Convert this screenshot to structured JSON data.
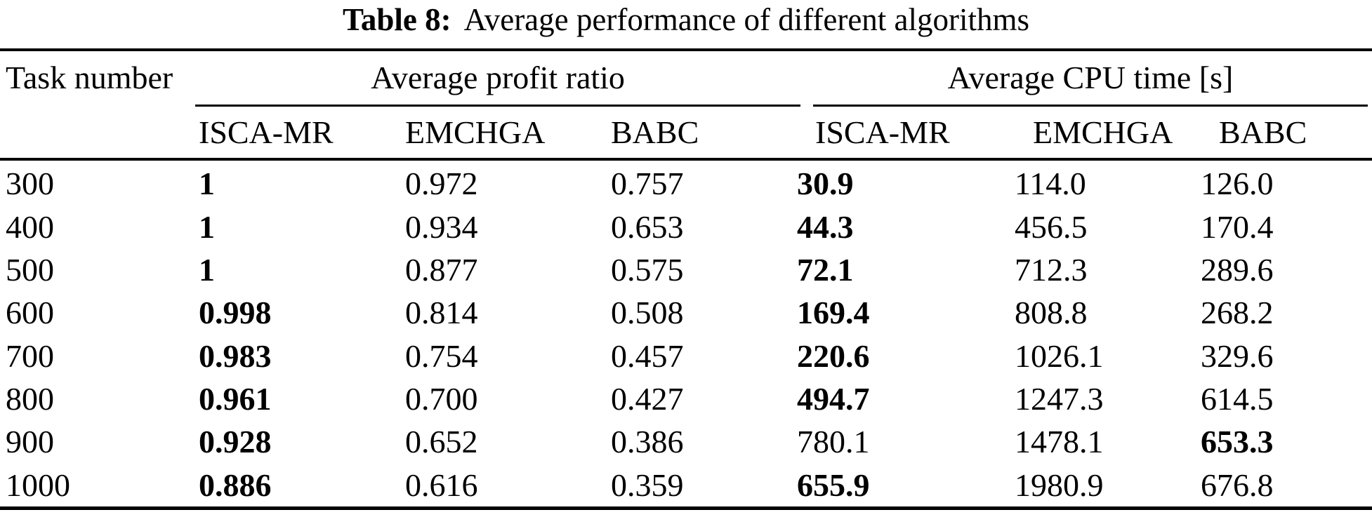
{
  "caption": {
    "label": "Table 8:",
    "text": "Average performance of different algorithms"
  },
  "headers": {
    "task": "Task number",
    "profit_group": "Average profit ratio",
    "cpu_group": "Average CPU time [s]",
    "algorithms": [
      "ISCA-MR",
      "EMCHGA",
      "BABC"
    ]
  },
  "rows": [
    {
      "task": "300",
      "profit": [
        {
          "v": "1",
          "bold": true
        },
        {
          "v": "0.972",
          "bold": false
        },
        {
          "v": "0.757",
          "bold": false
        }
      ],
      "cpu": [
        {
          "v": "30.9",
          "bold": true
        },
        {
          "v": "114.0",
          "bold": false
        },
        {
          "v": "126.0",
          "bold": false
        }
      ]
    },
    {
      "task": "400",
      "profit": [
        {
          "v": "1",
          "bold": true
        },
        {
          "v": "0.934",
          "bold": false
        },
        {
          "v": "0.653",
          "bold": false
        }
      ],
      "cpu": [
        {
          "v": "44.3",
          "bold": true
        },
        {
          "v": "456.5",
          "bold": false
        },
        {
          "v": "170.4",
          "bold": false
        }
      ]
    },
    {
      "task": "500",
      "profit": [
        {
          "v": "1",
          "bold": true
        },
        {
          "v": "0.877",
          "bold": false
        },
        {
          "v": "0.575",
          "bold": false
        }
      ],
      "cpu": [
        {
          "v": "72.1",
          "bold": true
        },
        {
          "v": "712.3",
          "bold": false
        },
        {
          "v": "289.6",
          "bold": false
        }
      ]
    },
    {
      "task": "600",
      "profit": [
        {
          "v": "0.998",
          "bold": true
        },
        {
          "v": "0.814",
          "bold": false
        },
        {
          "v": "0.508",
          "bold": false
        }
      ],
      "cpu": [
        {
          "v": "169.4",
          "bold": true
        },
        {
          "v": "808.8",
          "bold": false
        },
        {
          "v": "268.2",
          "bold": false
        }
      ]
    },
    {
      "task": "700",
      "profit": [
        {
          "v": "0.983",
          "bold": true
        },
        {
          "v": "0.754",
          "bold": false
        },
        {
          "v": "0.457",
          "bold": false
        }
      ],
      "cpu": [
        {
          "v": "220.6",
          "bold": true
        },
        {
          "v": "1026.1",
          "bold": false
        },
        {
          "v": "329.6",
          "bold": false
        }
      ]
    },
    {
      "task": "800",
      "profit": [
        {
          "v": "0.961",
          "bold": true
        },
        {
          "v": "0.700",
          "bold": false
        },
        {
          "v": "0.427",
          "bold": false
        }
      ],
      "cpu": [
        {
          "v": "494.7",
          "bold": true
        },
        {
          "v": "1247.3",
          "bold": false
        },
        {
          "v": "614.5",
          "bold": false
        }
      ]
    },
    {
      "task": "900",
      "profit": [
        {
          "v": "0.928",
          "bold": true
        },
        {
          "v": "0.652",
          "bold": false
        },
        {
          "v": "0.386",
          "bold": false
        }
      ],
      "cpu": [
        {
          "v": "780.1",
          "bold": false
        },
        {
          "v": "1478.1",
          "bold": false
        },
        {
          "v": "653.3",
          "bold": true
        }
      ]
    },
    {
      "task": "1000",
      "profit": [
        {
          "v": "0.886",
          "bold": true
        },
        {
          "v": "0.616",
          "bold": false
        },
        {
          "v": "0.359",
          "bold": false
        }
      ],
      "cpu": [
        {
          "v": "655.9",
          "bold": true
        },
        {
          "v": "1980.9",
          "bold": false
        },
        {
          "v": "676.8",
          "bold": false
        }
      ]
    }
  ],
  "colors": {
    "text": "#000000",
    "background": "#ffffff"
  }
}
